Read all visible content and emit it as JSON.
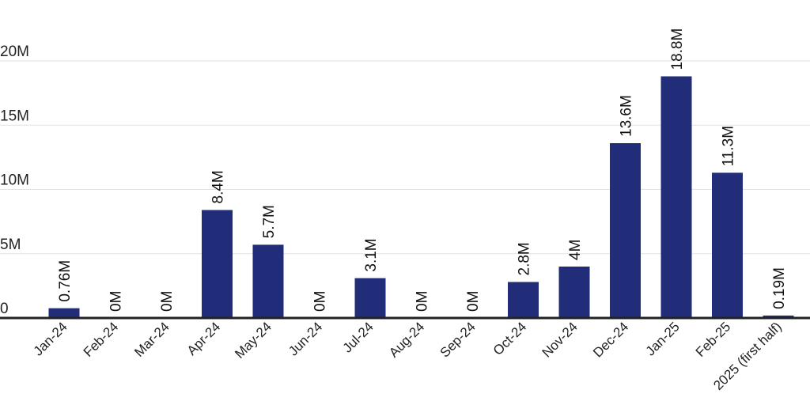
{
  "chart_data": {
    "type": "bar",
    "title": "",
    "xlabel": "",
    "ylabel": "",
    "categories": [
      "Jan-24",
      "Feb-24",
      "Mar-24",
      "Apr-24",
      "May-24",
      "Jun-24",
      "Jul-24",
      "Aug-24",
      "Sep-24",
      "Oct-24",
      "Nov-24",
      "Dec-24",
      "Jan-25",
      "Feb-25",
      "2025 (first half)"
    ],
    "values": [
      0.76,
      0,
      0,
      8.4,
      5.7,
      0,
      3.1,
      0,
      0,
      2.8,
      4,
      13.6,
      18.8,
      11.3,
      0.19
    ],
    "data_labels": [
      "0.76M",
      "0M",
      "0M",
      "8.4M",
      "5.7M",
      "0M",
      "3.1M",
      "0M",
      "0M",
      "2.8M",
      "4M",
      "13.6M",
      "18.8M",
      "11.3M",
      "0.19M"
    ],
    "yticks": [
      0,
      5,
      10,
      15,
      20
    ],
    "ytick_labels": [
      "0",
      "5M",
      "10M",
      "15M",
      "20M"
    ],
    "ylim": [
      0,
      20
    ],
    "grid": true,
    "legend": "none",
    "bar_color": "#222d7a"
  }
}
